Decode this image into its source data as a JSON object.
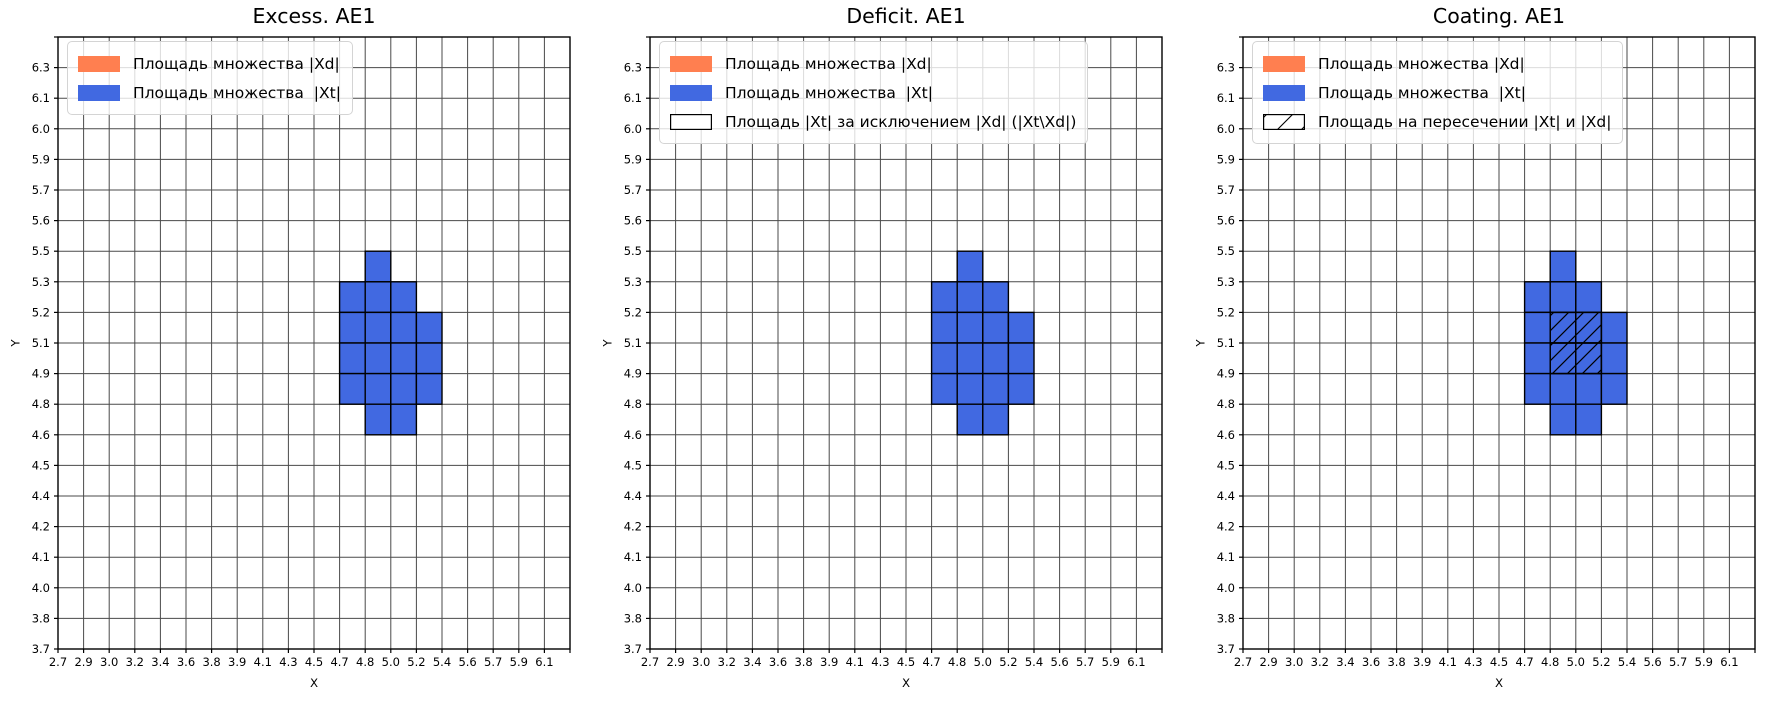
{
  "figure": {
    "background": "#ffffff",
    "grid_color": "#4a4a4a",
    "spine_color": "#000000",
    "cell_edge_color": "#000000",
    "legend_background": "rgba(255,255,255,0.8)",
    "legend_border": "#d4d4d4"
  },
  "chart_data": [
    {
      "type": "heatmap",
      "title": "Excess. AE1",
      "xlabel": "X",
      "ylabel": "Y",
      "grid": true,
      "legend_position": "upper left",
      "x_tick_labels": [
        "2.7",
        "2.9",
        "3.0",
        "3.2",
        "3.4",
        "3.6",
        "3.8",
        "3.9",
        "4.1",
        "4.3",
        "4.5",
        "4.7",
        "4.8",
        "5.0",
        "5.2",
        "5.4",
        "5.6",
        "5.7",
        "5.9",
        "6.1"
      ],
      "y_tick_labels": [
        "6.3",
        "6.1",
        "6.0",
        "5.9",
        "5.7",
        "5.6",
        "5.5",
        "5.3",
        "5.2",
        "5.1",
        "4.9",
        "4.8",
        "4.6",
        "4.5",
        "4.4",
        "4.2",
        "4.1",
        "4.0",
        "3.8",
        "3.7"
      ],
      "legend": [
        {
          "swatch": "solid",
          "color": "#FF7F50",
          "label": "Площадь множества |Xd|"
        },
        {
          "swatch": "solid",
          "color": "#4169E1",
          "label": "Площадь множества  |Xt|"
        }
      ],
      "xt_region": {
        "fill": "#4169E1",
        "cell_indexing": "[col,row]; col = index of cell left edge in x_tick_labels; row = cell top gridline (0 = unlabeled top spine, k>=1 -> y_tick_labels[k-1])",
        "cells": [
          [
            12,
            7
          ],
          [
            11,
            8
          ],
          [
            12,
            8
          ],
          [
            13,
            8
          ],
          [
            11,
            9
          ],
          [
            12,
            9
          ],
          [
            13,
            9
          ],
          [
            14,
            9
          ],
          [
            11,
            10
          ],
          [
            12,
            10
          ],
          [
            13,
            10
          ],
          [
            14,
            10
          ],
          [
            11,
            11
          ],
          [
            12,
            11
          ],
          [
            13,
            11
          ],
          [
            14,
            11
          ],
          [
            12,
            12
          ],
          [
            13,
            12
          ]
        ],
        "x_extent_labels": [
          "4.7",
          "5.4"
        ],
        "y_extent_labels": [
          "4.6",
          "5.5"
        ]
      }
    },
    {
      "type": "heatmap",
      "title": "Deficit. AE1",
      "xlabel": "X",
      "ylabel": "Y",
      "grid": true,
      "legend_position": "upper left",
      "x_tick_labels": [
        "2.7",
        "2.9",
        "3.0",
        "3.2",
        "3.4",
        "3.6",
        "3.8",
        "3.9",
        "4.1",
        "4.3",
        "4.5",
        "4.7",
        "4.8",
        "5.0",
        "5.2",
        "5.4",
        "5.6",
        "5.7",
        "5.9",
        "6.1"
      ],
      "y_tick_labels": [
        "6.3",
        "6.1",
        "6.0",
        "5.9",
        "5.7",
        "5.6",
        "5.5",
        "5.3",
        "5.2",
        "5.1",
        "4.9",
        "4.8",
        "4.6",
        "4.5",
        "4.4",
        "4.2",
        "4.1",
        "4.0",
        "3.8",
        "3.7"
      ],
      "legend": [
        {
          "swatch": "solid",
          "color": "#FF7F50",
          "label": "Площадь множества |Xd|"
        },
        {
          "swatch": "solid",
          "color": "#4169E1",
          "label": "Площадь множества  |Xt|"
        },
        {
          "swatch": "outline",
          "color": "#ffffff",
          "label": "Площадь |Xt| за исключением |Xd| (|Xt\\Xd|)"
        }
      ],
      "xt_region": {
        "fill": "#4169E1",
        "cell_indexing": "[col,row]; col = index of cell left edge in x_tick_labels; row = cell top gridline (0 = unlabeled top spine, k>=1 -> y_tick_labels[k-1])",
        "cells": [
          [
            12,
            7
          ],
          [
            11,
            8
          ],
          [
            12,
            8
          ],
          [
            13,
            8
          ],
          [
            11,
            9
          ],
          [
            12,
            9
          ],
          [
            13,
            9
          ],
          [
            14,
            9
          ],
          [
            11,
            10
          ],
          [
            12,
            10
          ],
          [
            13,
            10
          ],
          [
            14,
            10
          ],
          [
            11,
            11
          ],
          [
            12,
            11
          ],
          [
            13,
            11
          ],
          [
            14,
            11
          ],
          [
            12,
            12
          ],
          [
            13,
            12
          ]
        ],
        "x_extent_labels": [
          "4.7",
          "5.4"
        ],
        "y_extent_labels": [
          "4.6",
          "5.5"
        ]
      }
    },
    {
      "type": "heatmap",
      "title": "Coating. AE1",
      "xlabel": "X",
      "ylabel": "Y",
      "grid": true,
      "legend_position": "upper left",
      "x_tick_labels": [
        "2.7",
        "2.9",
        "3.0",
        "3.2",
        "3.4",
        "3.6",
        "3.8",
        "3.9",
        "4.1",
        "4.3",
        "4.5",
        "4.7",
        "4.8",
        "5.0",
        "5.2",
        "5.4",
        "5.6",
        "5.7",
        "5.9",
        "6.1"
      ],
      "y_tick_labels": [
        "6.3",
        "6.1",
        "6.0",
        "5.9",
        "5.7",
        "5.6",
        "5.5",
        "5.3",
        "5.2",
        "5.1",
        "4.9",
        "4.8",
        "4.6",
        "4.5",
        "4.4",
        "4.2",
        "4.1",
        "4.0",
        "3.8",
        "3.7"
      ],
      "legend": [
        {
          "swatch": "solid",
          "color": "#FF7F50",
          "label": "Площадь множества |Xd|"
        },
        {
          "swatch": "solid",
          "color": "#4169E1",
          "label": "Площадь множества  |Xt|"
        },
        {
          "swatch": "hatch",
          "color": "#ffffff",
          "label": "Площадь на пересечении |Xt| и |Xd|"
        }
      ],
      "xt_region": {
        "fill": "#4169E1",
        "cell_indexing": "[col,row]; col = index of cell left edge in x_tick_labels; row = cell top gridline (0 = unlabeled top spine, k>=1 -> y_tick_labels[k-1])",
        "cells": [
          [
            12,
            7
          ],
          [
            11,
            8
          ],
          [
            12,
            8
          ],
          [
            13,
            8
          ],
          [
            11,
            9
          ],
          [
            12,
            9
          ],
          [
            13,
            9
          ],
          [
            14,
            9
          ],
          [
            11,
            10
          ],
          [
            12,
            10
          ],
          [
            13,
            10
          ],
          [
            14,
            10
          ],
          [
            11,
            11
          ],
          [
            12,
            11
          ],
          [
            13,
            11
          ],
          [
            14,
            11
          ],
          [
            12,
            12
          ],
          [
            13,
            12
          ]
        ],
        "x_extent_labels": [
          "4.7",
          "5.4"
        ],
        "y_extent_labels": [
          "4.6",
          "5.5"
        ]
      },
      "intersection_region": {
        "hatch": "/",
        "cells": [
          [
            12,
            9
          ],
          [
            13,
            9
          ],
          [
            12,
            10
          ],
          [
            13,
            10
          ]
        ],
        "x_extent_labels": [
          "4.8",
          "5.2"
        ],
        "y_extent_labels": [
          "4.9",
          "5.2"
        ]
      }
    }
  ]
}
